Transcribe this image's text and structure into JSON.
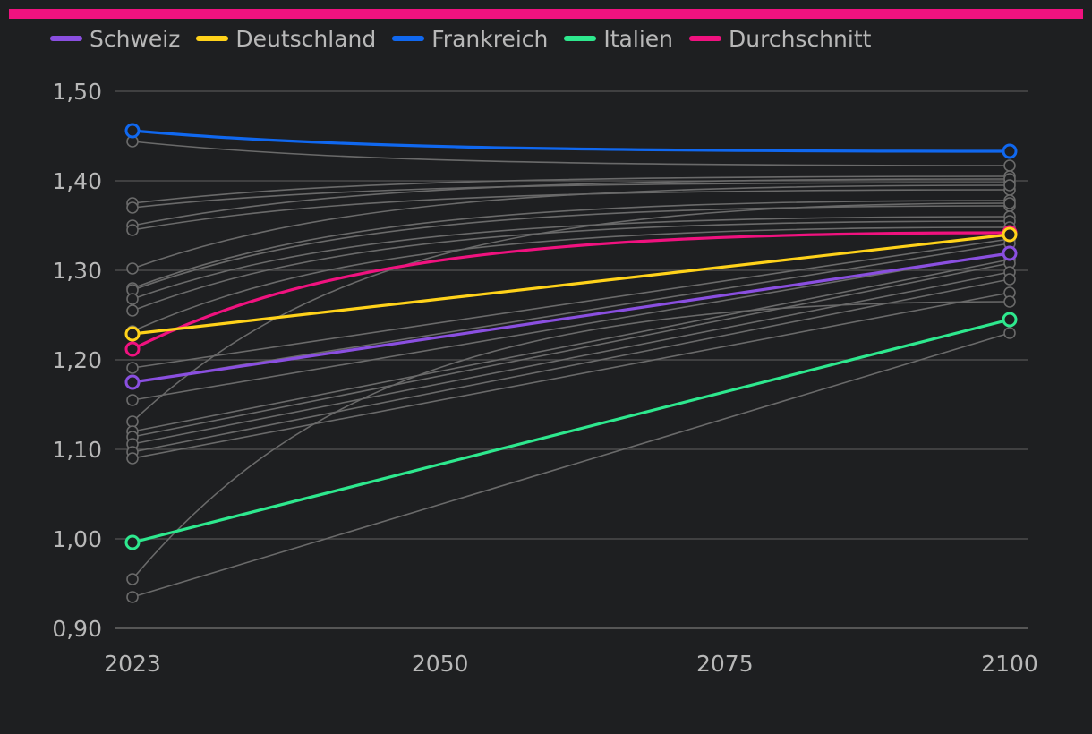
{
  "colors": {
    "background": "#1e1f21",
    "accent": "#f0127f",
    "grid": "#555555",
    "other": "#6a6a6a",
    "text": "#b8b8b8"
  },
  "chart_data": {
    "type": "line",
    "x": [
      2023,
      2100
    ],
    "x_ticks": [
      "2023",
      "2050",
      "2075",
      "2100"
    ],
    "x_tick_values": [
      2023,
      2050,
      2075,
      2100
    ],
    "y_ticks": [
      "1,50",
      "1,40",
      "1,30",
      "1,20",
      "1,10",
      "1,00",
      "0,90"
    ],
    "y_tick_values": [
      1.5,
      1.4,
      1.3,
      1.2,
      1.1,
      1.0,
      0.9
    ],
    "ylim": [
      0.9,
      1.5
    ],
    "xlim": [
      2023,
      2100
    ],
    "legend": [
      "Schweiz",
      "Deutschland",
      "Frankreich",
      "Italien",
      "Durchschnitt"
    ],
    "series": [
      {
        "name": "Schweiz",
        "color": "#8a4fe0",
        "values": [
          1.175,
          1.319
        ],
        "curve": "linear"
      },
      {
        "name": "Deutschland",
        "color": "#ffd21a",
        "values": [
          1.229,
          1.34
        ],
        "curve": "linear"
      },
      {
        "name": "Frankreich",
        "color": "#1068f0",
        "values": [
          1.456,
          1.433
        ],
        "curve": "concave"
      },
      {
        "name": "Italien",
        "color": "#2ee88e",
        "values": [
          0.996,
          1.245
        ],
        "curve": "linear"
      },
      {
        "name": "Durchschnitt",
        "color": "#f0127f",
        "values": [
          1.212,
          1.342
        ],
        "curve": "concave"
      }
    ],
    "other_series": [
      {
        "values": [
          1.444,
          1.417
        ],
        "curve": "concave"
      },
      {
        "values": [
          1.375,
          1.405
        ],
        "curve": "concave"
      },
      {
        "values": [
          1.37,
          1.398
        ],
        "curve": "concave"
      },
      {
        "values": [
          1.35,
          1.402
        ],
        "curve": "concave"
      },
      {
        "values": [
          1.345,
          1.39
        ],
        "curve": "concave"
      },
      {
        "values": [
          1.302,
          1.395
        ],
        "curve": "concave"
      },
      {
        "values": [
          1.28,
          1.378
        ],
        "curve": "concave"
      },
      {
        "values": [
          1.278,
          1.372
        ],
        "curve": "concave"
      },
      {
        "values": [
          1.268,
          1.36
        ],
        "curve": "concave"
      },
      {
        "values": [
          1.255,
          1.355
        ],
        "curve": "concave"
      },
      {
        "values": [
          1.232,
          1.348
        ],
        "curve": "concave"
      },
      {
        "values": [
          1.191,
          1.335
        ],
        "curve": "linear"
      },
      {
        "values": [
          1.175,
          1.33
        ],
        "curve": "linear"
      },
      {
        "values": [
          1.155,
          1.32
        ],
        "curve": "linear"
      },
      {
        "values": [
          1.131,
          1.375
        ],
        "curve": "concave"
      },
      {
        "values": [
          1.12,
          1.312
        ],
        "curve": "linear"
      },
      {
        "values": [
          1.114,
          1.308
        ],
        "curve": "linear"
      },
      {
        "values": [
          1.106,
          1.298
        ],
        "curve": "linear"
      },
      {
        "values": [
          1.097,
          1.29
        ],
        "curve": "linear"
      },
      {
        "values": [
          1.09,
          1.275
        ],
        "curve": "linear"
      },
      {
        "values": [
          0.955,
          1.265
        ],
        "curve": "concave"
      },
      {
        "values": [
          0.935,
          1.23
        ],
        "curve": "linear"
      }
    ]
  }
}
